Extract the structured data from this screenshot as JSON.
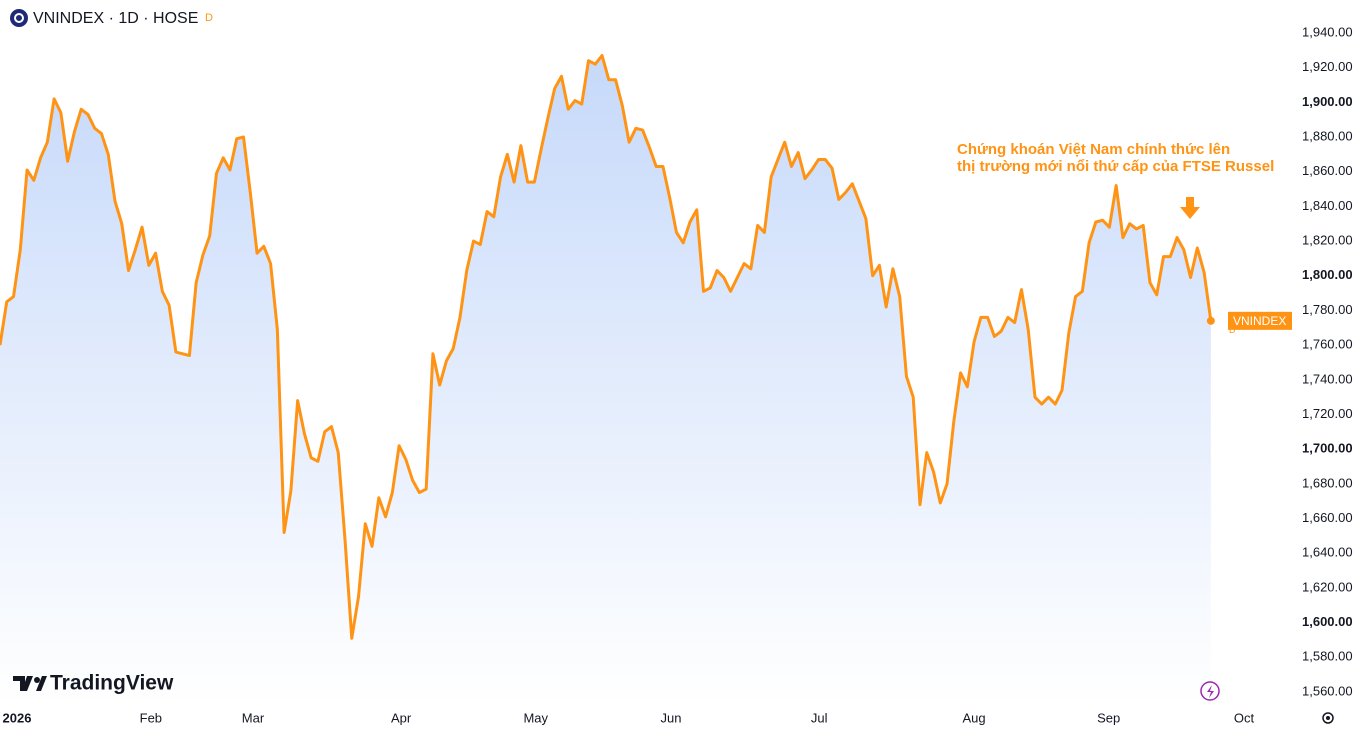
{
  "chart_data": {
    "type": "area-line",
    "title": "VNINDEX · 1D · HOSE",
    "badge": "D",
    "brand": "TradingView",
    "annotation": [
      "Chứng khoán Việt Nam chính thức lên",
      "thị trường mới nổi thứ cấp của FTSE Russel"
    ],
    "series": [
      {
        "name": "VNINDEX",
        "color": "#ff9314",
        "values": [
          1760,
          1785,
          1788,
          1815,
          1861,
          1855,
          1868,
          1877,
          1902,
          1894,
          1866,
          1883,
          1896,
          1893,
          1885,
          1882,
          1870,
          1843,
          1830,
          1803,
          1815,
          1828,
          1806,
          1813,
          1791,
          1783,
          1756,
          1755,
          1754,
          1796,
          1812,
          1823,
          1859,
          1868,
          1861,
          1879,
          1880,
          1848,
          1813,
          1817,
          1807,
          1769,
          1652,
          1676,
          1728,
          1709,
          1695,
          1693,
          1710,
          1713,
          1698,
          1648,
          1591,
          1615,
          1657,
          1644,
          1672,
          1661,
          1675,
          1702,
          1694,
          1682,
          1675,
          1677,
          1755,
          1737,
          1751,
          1758,
          1776,
          1803,
          1820,
          1818,
          1837,
          1834,
          1857,
          1870,
          1854,
          1875,
          1854,
          1854,
          1873,
          1891,
          1908,
          1915,
          1896,
          1901,
          1899,
          1924,
          1922,
          1927,
          1913,
          1913,
          1898,
          1877,
          1885,
          1884,
          1874,
          1863,
          1863,
          1845,
          1825,
          1819,
          1831,
          1838,
          1791,
          1793,
          1803,
          1799,
          1791,
          1799,
          1807,
          1804,
          1829,
          1825,
          1857,
          1867,
          1877,
          1863,
          1871,
          1856,
          1861,
          1867,
          1867,
          1862,
          1844,
          1848,
          1853,
          1843,
          1833,
          1800,
          1806,
          1782,
          1804,
          1788,
          1742,
          1730,
          1668,
          1698,
          1687,
          1669,
          1680,
          1716,
          1744,
          1736,
          1762,
          1776,
          1776,
          1765,
          1768,
          1776,
          1773,
          1792,
          1769,
          1730,
          1726,
          1730,
          1726,
          1734,
          1767,
          1788,
          1791,
          1819,
          1831,
          1832,
          1828,
          1852,
          1822,
          1830,
          1827,
          1829,
          1796,
          1789,
          1811,
          1811,
          1822,
          1815,
          1799,
          1816,
          1802,
          1774
        ]
      }
    ],
    "xlim": [
      0,
      190.7
    ],
    "xticks": [
      {
        "value": 2.5,
        "label": "2026"
      },
      {
        "value": 22.3,
        "label": "Feb"
      },
      {
        "value": 37.4,
        "label": "Mar"
      },
      {
        "value": 59.3,
        "label": "Apr"
      },
      {
        "value": 79.2,
        "label": "May"
      },
      {
        "value": 99.2,
        "label": "Jun"
      },
      {
        "value": 121.1,
        "label": "Jul"
      },
      {
        "value": 144,
        "label": "Aug"
      },
      {
        "value": 163.9,
        "label": "Sep"
      },
      {
        "value": 183.9,
        "label": "Oct"
      }
    ],
    "ylim": [
      1552.5,
      1959
    ],
    "yticks": [
      {
        "value": 1560,
        "label": "1,560.00"
      },
      {
        "value": 1580,
        "label": "1,580.00"
      },
      {
        "value": 1600,
        "label": "1,600.00"
      },
      {
        "value": 1620,
        "label": "1,620.00"
      },
      {
        "value": 1640,
        "label": "1,640.00"
      },
      {
        "value": 1660,
        "label": "1,660.00"
      },
      {
        "value": 1680,
        "label": "1,680.00"
      },
      {
        "value": 1700,
        "label": "1,700.00"
      },
      {
        "value": 1720,
        "label": "1,720.00"
      },
      {
        "value": 1740,
        "label": "1,740.00"
      },
      {
        "value": 1760,
        "label": "1,760.00"
      },
      {
        "value": 1780,
        "label": "1,780.00"
      },
      {
        "value": 1800,
        "label": "1,800.00"
      },
      {
        "value": 1820,
        "label": "1,820.00"
      },
      {
        "value": 1840,
        "label": "1,840.00"
      },
      {
        "value": 1860,
        "label": "1,860.00"
      },
      {
        "value": 1880,
        "label": "1,880.00"
      },
      {
        "value": 1900,
        "label": "1,900.00"
      },
      {
        "value": 1920,
        "label": "1,920.00"
      },
      {
        "value": 1940,
        "label": "1,940.00"
      }
    ],
    "grid": false
  }
}
